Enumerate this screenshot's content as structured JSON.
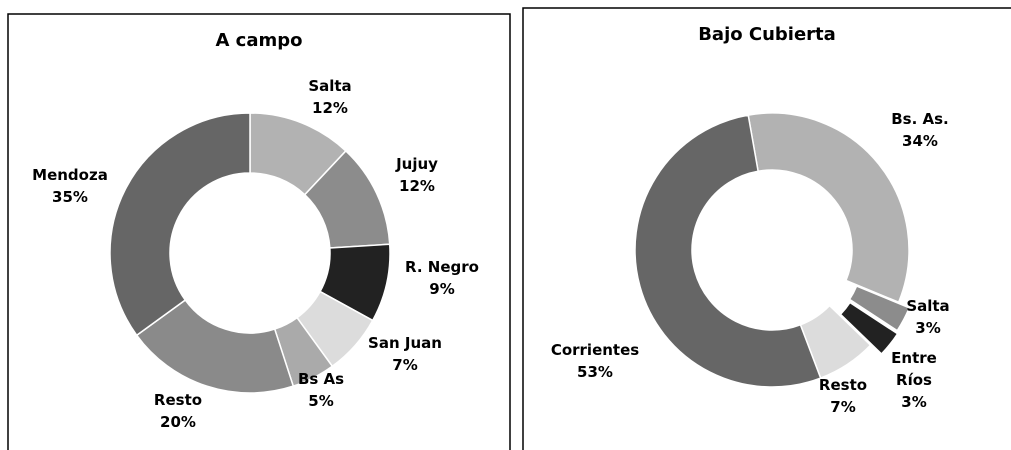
{
  "chart_data": [
    {
      "type": "pie",
      "title": "A campo",
      "categories": [
        "Salta",
        "Jujuy",
        "R. Negro",
        "San Juan",
        "Bs As",
        "Resto",
        "Mendoza"
      ],
      "values": [
        12,
        12,
        9,
        7,
        5,
        20,
        35
      ],
      "value_labels": [
        "12%",
        "12%",
        "9%",
        "7%",
        "5%",
        "20%",
        "35%"
      ],
      "colors": [
        "#b2b2b2",
        "#8c8c8c",
        "#222222",
        "#dcdcdc",
        "#aaaaaa",
        "#8a8a8a",
        "#666666"
      ]
    },
    {
      "type": "pie",
      "title": "Bajo Cubierta",
      "categories": [
        "Bs. As.",
        "Salta",
        "Entre Ríos",
        "Resto",
        "Corrientes"
      ],
      "values": [
        34,
        3,
        3,
        7,
        53
      ],
      "value_labels": [
        "34%",
        "3%",
        "3%",
        "7%",
        "53%"
      ],
      "colors": [
        "#b2b2b2",
        "#8c8c8c",
        "#222222",
        "#dcdcdc",
        "#666666"
      ]
    }
  ]
}
